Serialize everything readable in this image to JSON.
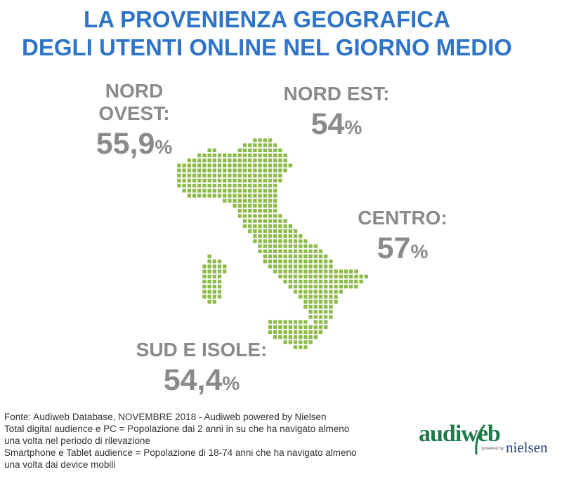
{
  "title": {
    "line1": "LA PROVENIENZA GEOGRAFICA",
    "line2": "DEGLI UTENTI ONLINE NEL GIORNO MEDIO"
  },
  "regions": {
    "nord_ovest": {
      "label": "NORD OVEST:",
      "value": "55,9",
      "unit": "%"
    },
    "nord_est": {
      "label": "NORD EST:",
      "value": "54",
      "unit": "%"
    },
    "centro": {
      "label": "CENTRO:",
      "value": "57",
      "unit": "%"
    },
    "sud_isole": {
      "label": "SUD E ISOLE:",
      "value": "54,4",
      "unit": "%"
    }
  },
  "footer": {
    "line1": "Fonte: Audiweb Database, NOVEMBRE 2018 - Audiweb powered by Nielsen",
    "line2": "Total digital audience e PC = Popolazione dai 2 anni in su che ha navigato almeno",
    "line3": "una volta nel periodo di rilevazione",
    "line4": "Smartphone e Tablet audience = Popolazione di 18-74 anni che ha navigato almeno",
    "line5": "una volta dai device mobili"
  },
  "logo": {
    "brand": "audiweb",
    "powered": "powered by",
    "partner": "nielsen"
  },
  "colors": {
    "title": "#2f74c8",
    "region_text": "#8a8a8a",
    "map_dots": "#8dbb4a"
  }
}
